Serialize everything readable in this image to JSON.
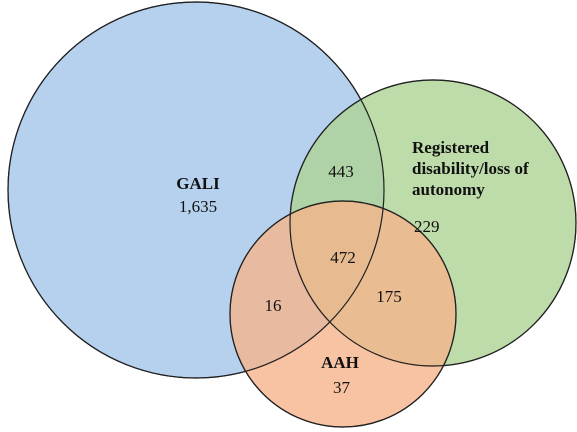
{
  "chart_data": {
    "type": "venn",
    "series": [
      {
        "name": "GALI",
        "color": "#a3c6ea"
      },
      {
        "name": "Registered disability/loss of autonomy",
        "color": "#aed394"
      },
      {
        "name": "AAH",
        "color": "#f5b48b"
      }
    ],
    "values": [
      1635,
      229,
      37,
      443,
      16,
      175,
      472
    ],
    "value_labels": [
      "1,635",
      "229",
      "37",
      "443",
      "16",
      "175",
      "472"
    ]
  }
}
